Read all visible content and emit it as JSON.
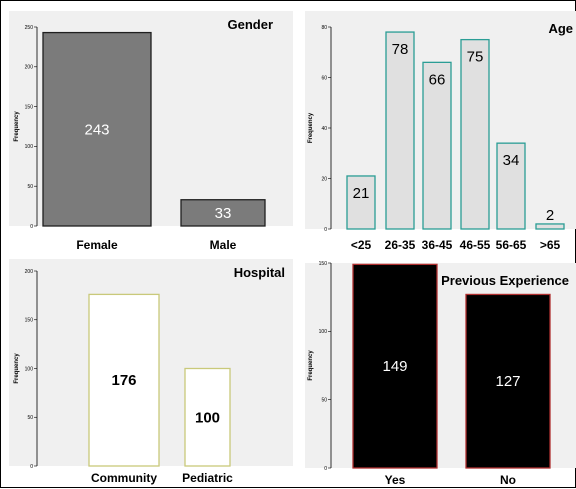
{
  "chart_data": [
    {
      "type": "bar",
      "title": "Gender",
      "xlabel": "",
      "ylabel": "Frequency",
      "categories": [
        "Female",
        "Male"
      ],
      "values": [
        243,
        33
      ],
      "ylim": [
        0,
        250
      ],
      "yticks": [
        0,
        50,
        100,
        150,
        200,
        250
      ],
      "grid": false,
      "colors": {
        "background": "#f0f0f0",
        "bar_fill": "#7b7b7b",
        "bar_stroke": "#1f1f1f",
        "label": "#ffffff",
        "axis": "#000000"
      }
    },
    {
      "type": "bar",
      "title": "Age",
      "xlabel": "",
      "ylabel": "Frequency",
      "categories": [
        "<25",
        "26-35",
        "36-45",
        "46-55",
        "56-65",
        ">65"
      ],
      "values": [
        21,
        78,
        66,
        75,
        34,
        2
      ],
      "ylim": [
        0,
        80
      ],
      "yticks": [
        0,
        20,
        40,
        60,
        80
      ],
      "grid": false,
      "colors": {
        "background": "#f0f0f0",
        "bar_fill": "#e0e0e0",
        "bar_stroke": "#2a9d95",
        "label": "#000000",
        "axis": "#000000"
      }
    },
    {
      "type": "bar",
      "title": "Hospital",
      "xlabel": "",
      "ylabel": "Frequency",
      "categories": [
        "Community",
        "Pediatric"
      ],
      "values": [
        176,
        100
      ],
      "ylim": [
        0,
        200
      ],
      "yticks": [
        0,
        50,
        100,
        150,
        200
      ],
      "grid": false,
      "colors": {
        "background": "#f0f0f0",
        "bar_fill": "#ffffff",
        "bar_stroke": "#c9c97a",
        "label": "#000000",
        "axis": "#000000"
      }
    },
    {
      "type": "bar",
      "title": "Previous Experience",
      "xlabel": "",
      "ylabel": "Frequency",
      "categories": [
        "Yes",
        "No"
      ],
      "values": [
        149,
        127
      ],
      "ylim": [
        0,
        150
      ],
      "yticks": [
        0,
        50,
        100,
        150
      ],
      "grid": false,
      "colors": {
        "background": "#f0f0f0",
        "bar_fill": "#000000",
        "bar_stroke": "#b03030",
        "label": "#ffffff",
        "axis": "#000000"
      }
    }
  ]
}
